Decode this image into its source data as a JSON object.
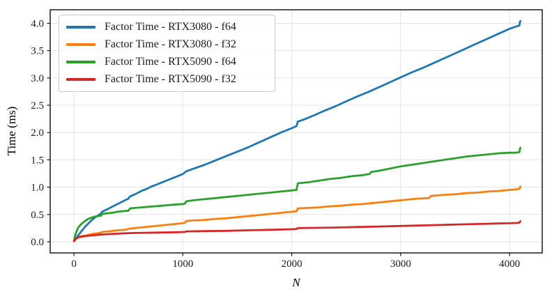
{
  "figure": {
    "background": "#ffffff",
    "grid_color": "#e3e3e3",
    "spine_color": "#1a1a1a",
    "text_color": "#1a1a1a",
    "legend": {
      "position": "upper-left",
      "background": "rgba(255,255,255,0.8)",
      "border_color": "#cccccc"
    }
  },
  "chart_data": {
    "type": "line",
    "title": "",
    "xlabel": "N",
    "ylabel": "Time (ms)",
    "xlim": [
      -218,
      4300
    ],
    "ylim": [
      -0.204,
      4.248
    ],
    "xticks": [
      0,
      1000,
      2000,
      3000,
      4000
    ],
    "xtick_labels": [
      "0",
      "1000",
      "2000",
      "3000",
      "4000"
    ],
    "yticks": [
      0,
      0.5,
      1,
      1.5,
      2,
      2.5,
      3,
      3.5,
      4
    ],
    "ytick_labels": [
      "0.0",
      "0.5",
      "1.0",
      "1.5",
      "2.0",
      "2.5",
      "3.0",
      "3.5",
      "4.0"
    ],
    "grid": true,
    "legend_position": "upper-left",
    "series": [
      {
        "name": "Factor Time - RTX3080 - f64",
        "color": "#1f77b4",
        "points": [
          [
            1,
            0.02
          ],
          [
            20,
            0.06
          ],
          [
            40,
            0.12
          ],
          [
            60,
            0.17
          ],
          [
            80,
            0.22
          ],
          [
            100,
            0.27
          ],
          [
            130,
            0.33
          ],
          [
            160,
            0.39
          ],
          [
            190,
            0.44
          ],
          [
            220,
            0.48
          ],
          [
            250,
            0.52
          ],
          [
            258,
            0.55
          ],
          [
            290,
            0.58
          ],
          [
            320,
            0.61
          ],
          [
            350,
            0.64
          ],
          [
            380,
            0.67
          ],
          [
            410,
            0.7
          ],
          [
            440,
            0.73
          ],
          [
            470,
            0.76
          ],
          [
            500,
            0.79
          ],
          [
            515,
            0.83
          ],
          [
            550,
            0.86
          ],
          [
            590,
            0.9
          ],
          [
            630,
            0.94
          ],
          [
            670,
            0.97
          ],
          [
            710,
            1.01
          ],
          [
            750,
            1.04
          ],
          [
            800,
            1.08
          ],
          [
            850,
            1.12
          ],
          [
            900,
            1.16
          ],
          [
            950,
            1.2
          ],
          [
            1000,
            1.24
          ],
          [
            1030,
            1.29
          ],
          [
            1100,
            1.34
          ],
          [
            1200,
            1.41
          ],
          [
            1300,
            1.49
          ],
          [
            1400,
            1.57
          ],
          [
            1500,
            1.65
          ],
          [
            1600,
            1.73
          ],
          [
            1700,
            1.82
          ],
          [
            1800,
            1.91
          ],
          [
            1900,
            2.0
          ],
          [
            2000,
            2.08
          ],
          [
            2045,
            2.12
          ],
          [
            2055,
            2.2
          ],
          [
            2100,
            2.23
          ],
          [
            2200,
            2.31
          ],
          [
            2300,
            2.4
          ],
          [
            2400,
            2.48
          ],
          [
            2500,
            2.57
          ],
          [
            2600,
            2.66
          ],
          [
            2700,
            2.74
          ],
          [
            2800,
            2.83
          ],
          [
            2900,
            2.92
          ],
          [
            3000,
            3.01
          ],
          [
            3100,
            3.1
          ],
          [
            3200,
            3.18
          ],
          [
            3300,
            3.27
          ],
          [
            3400,
            3.36
          ],
          [
            3500,
            3.45
          ],
          [
            3600,
            3.54
          ],
          [
            3700,
            3.63
          ],
          [
            3800,
            3.72
          ],
          [
            3900,
            3.81
          ],
          [
            4000,
            3.9
          ],
          [
            4060,
            3.94
          ],
          [
            4090,
            3.96
          ],
          [
            4096,
            4.03
          ],
          [
            4100,
            4.04
          ]
        ]
      },
      {
        "name": "Factor Time - RTX3080 - f32",
        "color": "#ff7f0e",
        "points": [
          [
            1,
            0.01
          ],
          [
            20,
            0.05
          ],
          [
            40,
            0.08
          ],
          [
            60,
            0.1
          ],
          [
            90,
            0.11
          ],
          [
            120,
            0.12
          ],
          [
            160,
            0.14
          ],
          [
            200,
            0.15
          ],
          [
            250,
            0.17
          ],
          [
            258,
            0.18
          ],
          [
            320,
            0.19
          ],
          [
            400,
            0.21
          ],
          [
            470,
            0.22
          ],
          [
            510,
            0.24
          ],
          [
            600,
            0.26
          ],
          [
            700,
            0.28
          ],
          [
            800,
            0.3
          ],
          [
            900,
            0.32
          ],
          [
            1000,
            0.34
          ],
          [
            1020,
            0.35
          ],
          [
            1030,
            0.38
          ],
          [
            1100,
            0.39
          ],
          [
            1200,
            0.4
          ],
          [
            1300,
            0.42
          ],
          [
            1400,
            0.43
          ],
          [
            1500,
            0.45
          ],
          [
            1600,
            0.47
          ],
          [
            1700,
            0.49
          ],
          [
            1800,
            0.51
          ],
          [
            1900,
            0.53
          ],
          [
            2000,
            0.55
          ],
          [
            2045,
            0.56
          ],
          [
            2055,
            0.61
          ],
          [
            2150,
            0.62
          ],
          [
            2250,
            0.63
          ],
          [
            2350,
            0.65
          ],
          [
            2450,
            0.66
          ],
          [
            2550,
            0.68
          ],
          [
            2650,
            0.69
          ],
          [
            2750,
            0.71
          ],
          [
            2850,
            0.73
          ],
          [
            2950,
            0.75
          ],
          [
            3050,
            0.77
          ],
          [
            3150,
            0.79
          ],
          [
            3260,
            0.8
          ],
          [
            3280,
            0.84
          ],
          [
            3400,
            0.86
          ],
          [
            3500,
            0.87
          ],
          [
            3600,
            0.89
          ],
          [
            3700,
            0.9
          ],
          [
            3800,
            0.92
          ],
          [
            3900,
            0.93
          ],
          [
            4000,
            0.95
          ],
          [
            4060,
            0.96
          ],
          [
            4090,
            0.97
          ],
          [
            4096,
            1.0
          ],
          [
            4100,
            1.01
          ]
        ]
      },
      {
        "name": "Factor Time - RTX5090 - f64",
        "color": "#2ca02c",
        "points": [
          [
            1,
            0.02
          ],
          [
            10,
            0.1
          ],
          [
            20,
            0.17
          ],
          [
            30,
            0.22
          ],
          [
            40,
            0.26
          ],
          [
            55,
            0.3
          ],
          [
            70,
            0.33
          ],
          [
            90,
            0.36
          ],
          [
            110,
            0.39
          ],
          [
            130,
            0.42
          ],
          [
            160,
            0.44
          ],
          [
            190,
            0.46
          ],
          [
            220,
            0.47
          ],
          [
            250,
            0.48
          ],
          [
            258,
            0.51
          ],
          [
            300,
            0.52
          ],
          [
            350,
            0.53
          ],
          [
            400,
            0.55
          ],
          [
            450,
            0.56
          ],
          [
            500,
            0.57
          ],
          [
            515,
            0.61
          ],
          [
            560,
            0.62
          ],
          [
            620,
            0.63
          ],
          [
            680,
            0.64
          ],
          [
            740,
            0.65
          ],
          [
            800,
            0.66
          ],
          [
            860,
            0.67
          ],
          [
            920,
            0.68
          ],
          [
            1000,
            0.69
          ],
          [
            1020,
            0.7
          ],
          [
            1030,
            0.74
          ],
          [
            1100,
            0.76
          ],
          [
            1200,
            0.78
          ],
          [
            1300,
            0.8
          ],
          [
            1400,
            0.82
          ],
          [
            1500,
            0.84
          ],
          [
            1600,
            0.86
          ],
          [
            1700,
            0.88
          ],
          [
            1800,
            0.9
          ],
          [
            1900,
            0.92
          ],
          [
            2000,
            0.94
          ],
          [
            2045,
            0.95
          ],
          [
            2055,
            1.07
          ],
          [
            2150,
            1.09
          ],
          [
            2250,
            1.12
          ],
          [
            2350,
            1.15
          ],
          [
            2450,
            1.17
          ],
          [
            2550,
            1.2
          ],
          [
            2650,
            1.22
          ],
          [
            2715,
            1.24
          ],
          [
            2730,
            1.28
          ],
          [
            2800,
            1.3
          ],
          [
            2900,
            1.34
          ],
          [
            3000,
            1.38
          ],
          [
            3100,
            1.41
          ],
          [
            3200,
            1.44
          ],
          [
            3300,
            1.47
          ],
          [
            3400,
            1.5
          ],
          [
            3500,
            1.53
          ],
          [
            3600,
            1.56
          ],
          [
            3700,
            1.58
          ],
          [
            3800,
            1.6
          ],
          [
            3900,
            1.62
          ],
          [
            4000,
            1.63
          ],
          [
            4050,
            1.63
          ],
          [
            4090,
            1.64
          ],
          [
            4096,
            1.71
          ],
          [
            4100,
            1.72
          ]
        ]
      },
      {
        "name": "Factor Time - RTX5090 - f32",
        "color": "#d62728",
        "points": [
          [
            1,
            0.01
          ],
          [
            10,
            0.04
          ],
          [
            20,
            0.06
          ],
          [
            35,
            0.08
          ],
          [
            60,
            0.09
          ],
          [
            90,
            0.1
          ],
          [
            130,
            0.11
          ],
          [
            180,
            0.12
          ],
          [
            240,
            0.13
          ],
          [
            320,
            0.14
          ],
          [
            420,
            0.15
          ],
          [
            515,
            0.16
          ],
          [
            650,
            0.165
          ],
          [
            800,
            0.17
          ],
          [
            950,
            0.175
          ],
          [
            1020,
            0.18
          ],
          [
            1030,
            0.19
          ],
          [
            1200,
            0.195
          ],
          [
            1400,
            0.2
          ],
          [
            1600,
            0.21
          ],
          [
            1800,
            0.22
          ],
          [
            2000,
            0.23
          ],
          [
            2045,
            0.235
          ],
          [
            2055,
            0.25
          ],
          [
            2200,
            0.255
          ],
          [
            2400,
            0.26
          ],
          [
            2600,
            0.27
          ],
          [
            2800,
            0.28
          ],
          [
            3000,
            0.29
          ],
          [
            3200,
            0.3
          ],
          [
            3400,
            0.31
          ],
          [
            3600,
            0.32
          ],
          [
            3800,
            0.33
          ],
          [
            3900,
            0.335
          ],
          [
            4000,
            0.34
          ],
          [
            4060,
            0.345
          ],
          [
            4090,
            0.35
          ],
          [
            4096,
            0.37
          ],
          [
            4100,
            0.375
          ]
        ]
      }
    ]
  }
}
